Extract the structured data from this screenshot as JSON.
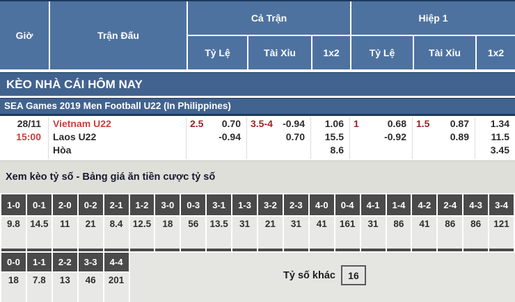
{
  "colors": {
    "header_blue": "#4e72a0",
    "bar_blue": "#42638f",
    "navy_line": "#1c3a5e",
    "score_dark": "#4a4a4a",
    "cell_gray": "#e8e8e6",
    "team_red": "#d03b3b",
    "line_red": "#9e2020"
  },
  "header": {
    "col_time": "Giờ",
    "col_match": "Trận Đấu",
    "group_full": "Cả Trận",
    "group_half": "Hiệp 1",
    "sub_handicap": "Tỷ Lệ",
    "sub_overunder": "Tài Xỉu",
    "sub_1x2": "1x2"
  },
  "section_title": "KÈO NHÀ CÁI HÔM NAY",
  "league_title": "SEA Games 2019 Men Football U22 (In Philippines)",
  "match": {
    "date": "28/11",
    "time": "15:00",
    "home": "Vietnam U22",
    "away": "Laos U22",
    "draw": "Hòa",
    "full": {
      "handicap": {
        "line": "2.5",
        "home": "0.70",
        "away": "-0.94"
      },
      "overunder": {
        "line": "3.5-4",
        "over": "-0.94",
        "under": "0.70"
      },
      "x12": {
        "home": "1.06",
        "away": "15.5",
        "draw": "8.6"
      }
    },
    "half": {
      "handicap": {
        "line": "1",
        "home": "0.68",
        "away": "-0.92"
      },
      "overunder": {
        "line": "1.5",
        "over": "0.87",
        "under": "0.89"
      },
      "x12": {
        "home": "1.34",
        "away": "11.5",
        "draw": "3.45"
      }
    }
  },
  "score_section": {
    "title": "Xem kèo tỷ số - Bảng giá ăn tiền cược tỷ số",
    "row1": [
      {
        "score": "1-0",
        "odds": "9.8"
      },
      {
        "score": "0-1",
        "odds": "14.5"
      },
      {
        "score": "2-0",
        "odds": "11"
      },
      {
        "score": "0-2",
        "odds": "21"
      },
      {
        "score": "2-1",
        "odds": "8.4"
      },
      {
        "score": "1-2",
        "odds": "12.5"
      },
      {
        "score": "3-0",
        "odds": "18"
      },
      {
        "score": "0-3",
        "odds": "56"
      },
      {
        "score": "3-1",
        "odds": "13.5"
      },
      {
        "score": "1-3",
        "odds": "31"
      },
      {
        "score": "3-2",
        "odds": "21"
      },
      {
        "score": "2-3",
        "odds": "31"
      },
      {
        "score": "4-0",
        "odds": "41"
      },
      {
        "score": "0-4",
        "odds": "161"
      },
      {
        "score": "4-1",
        "odds": "31"
      },
      {
        "score": "1-4",
        "odds": "86"
      },
      {
        "score": "4-2",
        "odds": "41"
      },
      {
        "score": "2-4",
        "odds": "86"
      },
      {
        "score": "4-3",
        "odds": "86"
      },
      {
        "score": "3-4",
        "odds": "121"
      }
    ],
    "row2": [
      {
        "score": "0-0",
        "odds": "18"
      },
      {
        "score": "1-1",
        "odds": "7.8"
      },
      {
        "score": "2-2",
        "odds": "13"
      },
      {
        "score": "3-3",
        "odds": "46"
      },
      {
        "score": "4-4",
        "odds": "201"
      }
    ],
    "other_label": "Tỷ số khác",
    "other_odds": "16"
  }
}
